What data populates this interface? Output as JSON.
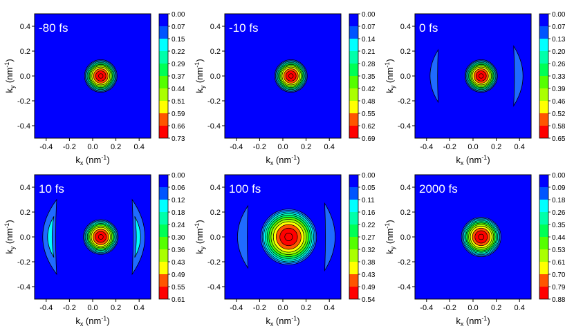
{
  "colors": {
    "levels": [
      "#0000ff",
      "#0055ff",
      "#00aaff",
      "#00ffff",
      "#00ffaa",
      "#00ff55",
      "#00ff00",
      "#55ff00",
      "#aaff00",
      "#ffff00",
      "#ffaa00",
      "#ff5500",
      "#ff0000"
    ],
    "background": "#0000ff",
    "outer_fill": "#1f6bff"
  },
  "chart_data": [
    {
      "type": "heatmap",
      "panel_label": "-80 fs",
      "xlabel": "kx (nm⁻¹)",
      "ylabel": "ky (nm⁻¹)",
      "xlim": [
        -0.5,
        0.5
      ],
      "ylim": [
        -0.5,
        0.5
      ],
      "xticks": [
        "-0.4",
        "-0.2",
        "0.0",
        "0.2",
        "0.4"
      ],
      "yticks": [
        "0.4",
        "0.2",
        "0.0",
        "-0.2",
        "-0.4"
      ],
      "colorbar": [
        "0.00",
        "0.07",
        "0.15",
        "0.22",
        "0.29",
        "0.37",
        "0.44",
        "0.51",
        "0.59",
        "0.66",
        "0.73"
      ],
      "peak": {
        "x": 0.07,
        "y": 0.0,
        "value": 0.73
      },
      "central_radius": 0.14,
      "side_lobes": []
    },
    {
      "type": "heatmap",
      "panel_label": "-10 fs",
      "xlabel": "kx (nm⁻¹)",
      "ylabel": "ky (nm⁻¹)",
      "xlim": [
        -0.5,
        0.5
      ],
      "ylim": [
        -0.5,
        0.5
      ],
      "xticks": [
        "-0.4",
        "-0.2",
        "0.0",
        "0.2",
        "0.4"
      ],
      "yticks": [
        "0.4",
        "0.2",
        "0.0",
        "-0.2",
        "-0.4"
      ],
      "colorbar": [
        "0.00",
        "0.07",
        "0.14",
        "0.21",
        "0.28",
        "0.35",
        "0.42",
        "0.48",
        "0.55",
        "0.62",
        "0.69"
      ],
      "peak": {
        "x": 0.07,
        "y": 0.0,
        "value": 0.69
      },
      "central_radius": 0.14,
      "side_lobes": []
    },
    {
      "type": "heatmap",
      "panel_label": "0 fs",
      "xlabel": "kx (nm⁻¹)",
      "ylabel": "ky (nm⁻¹)",
      "xlim": [
        -0.5,
        0.5
      ],
      "ylim": [
        -0.5,
        0.5
      ],
      "xticks": [
        "-0.4",
        "-0.2",
        "0.0",
        "0.2",
        "0.4"
      ],
      "yticks": [
        "0.4",
        "0.2",
        "0.0",
        "-0.2",
        "-0.4"
      ],
      "colorbar": [
        "0.00",
        "0.07",
        "0.13",
        "0.20",
        "0.26",
        "0.33",
        "0.39",
        "0.46",
        "0.52",
        "0.58",
        "0.65"
      ],
      "peak": {
        "x": 0.07,
        "y": 0.0,
        "value": 0.65
      },
      "central_radius": 0.14,
      "side_lobes": [
        {
          "side": "left",
          "x_outer": -0.37,
          "x_inner": -0.3,
          "y_half": 0.21
        },
        {
          "side": "right",
          "x_outer": 0.43,
          "x_inner": 0.35,
          "y_half": 0.24
        }
      ]
    },
    {
      "type": "heatmap",
      "panel_label": "10 fs",
      "xlabel": "kx (nm⁻¹)",
      "ylabel": "ky (nm⁻¹)",
      "xlim": [
        -0.5,
        0.5
      ],
      "ylim": [
        -0.5,
        0.5
      ],
      "xticks": [
        "-0.4",
        "-0.2",
        "0.0",
        "0.2",
        "0.4"
      ],
      "yticks": [
        "0.4",
        "0.2",
        "0.0",
        "-0.2",
        "-0.4"
      ],
      "colorbar": [
        "0.00",
        "0.06",
        "0.12",
        "0.18",
        "0.24",
        "0.30",
        "0.36",
        "0.43",
        "0.49",
        "0.55",
        "0.61"
      ],
      "peak": {
        "x": 0.07,
        "y": 0.0,
        "value": 0.61
      },
      "central_radius": 0.15,
      "side_lobes": [
        {
          "side": "left",
          "x_outer": -0.43,
          "x_inner": -0.31,
          "y_half": 0.3
        },
        {
          "side": "right",
          "x_outer": 0.45,
          "x_inner": 0.34,
          "y_half": 0.3
        }
      ]
    },
    {
      "type": "heatmap",
      "panel_label": "100 fs",
      "xlabel": "kx (nm⁻¹)",
      "ylabel": "ky (nm⁻¹)",
      "xlim": [
        -0.5,
        0.5
      ],
      "ylim": [
        -0.5,
        0.5
      ],
      "xticks": [
        "-0.4",
        "-0.2",
        "0.0",
        "0.2",
        "0.4"
      ],
      "yticks": [
        "0.4",
        "0.2",
        "0.0",
        "-0.2",
        "-0.4"
      ],
      "colorbar": [
        "0.00",
        "0.05",
        "0.11",
        "0.16",
        "0.22",
        "0.27",
        "0.32",
        "0.38",
        "0.43",
        "0.49",
        "0.54"
      ],
      "peak": {
        "x": 0.05,
        "y": 0.0,
        "value": 0.54
      },
      "central_radius": 0.24,
      "side_lobes": [
        {
          "side": "left",
          "x_outer": -0.39,
          "x_inner": -0.3,
          "y_half": 0.25
        },
        {
          "side": "right",
          "x_outer": 0.45,
          "x_inner": 0.36,
          "y_half": 0.27
        }
      ]
    },
    {
      "type": "heatmap",
      "panel_label": "2000 fs",
      "xlabel": "kx (nm⁻¹)",
      "ylabel": "ky (nm⁻¹)",
      "xlim": [
        -0.5,
        0.5
      ],
      "ylim": [
        -0.5,
        0.5
      ],
      "xticks": [
        "-0.4",
        "-0.2",
        "0.0",
        "0.2",
        "0.4"
      ],
      "yticks": [
        "0.4",
        "0.2",
        "0.0",
        "-0.2",
        "-0.4"
      ],
      "colorbar": [
        "0.00",
        "0.09",
        "0.18",
        "0.26",
        "0.35",
        "0.44",
        "0.53",
        "0.61",
        "0.70",
        "0.79",
        "0.88"
      ],
      "peak": {
        "x": 0.07,
        "y": 0.0,
        "value": 0.88
      },
      "central_radius": 0.17,
      "side_lobes": []
    }
  ]
}
